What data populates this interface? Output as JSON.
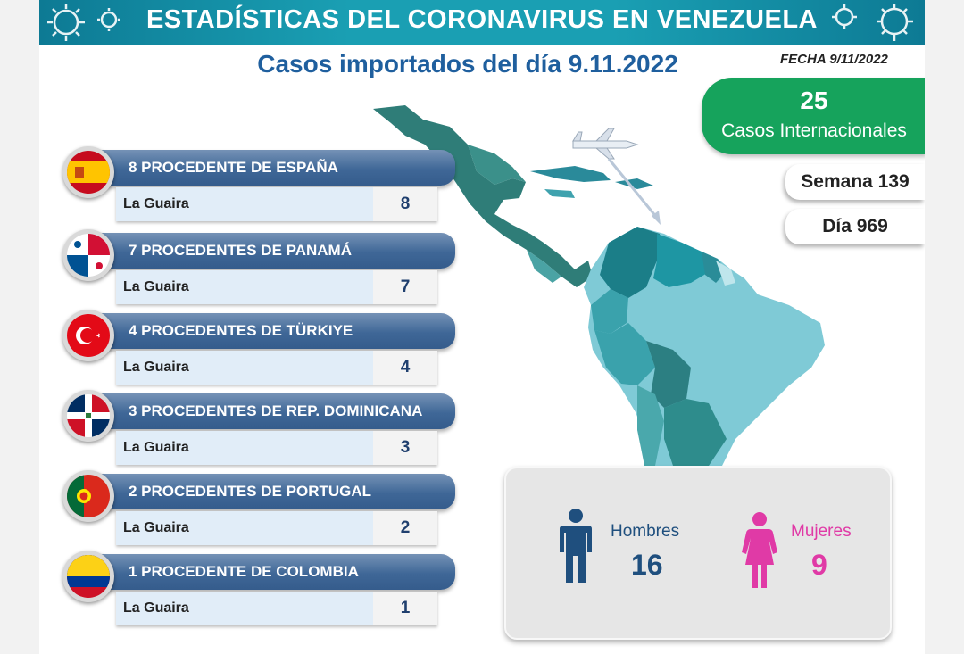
{
  "header": {
    "title": "ESTADÍSTICAS DEL CORONAVIRUS EN VENEZUELA",
    "subtitle": "Casos importados del día 9.11.2022",
    "fecha": "FECHA 9/11/2022"
  },
  "summary": {
    "total": "25",
    "total_label": "Casos Internacionales",
    "semana": "Semana 139",
    "dia": "Día 969"
  },
  "origins": [
    {
      "title": "8 PROCEDENTE DE ESPAÑA",
      "state": "La Guaira",
      "value": "8",
      "flag_icon": "spain-flag-icon"
    },
    {
      "title": "7 PROCEDENTES DE PANAMÁ",
      "state": "La Guaira",
      "value": "7",
      "flag_icon": "panama-flag-icon"
    },
    {
      "title": "4 PROCEDENTES DE TÜRKIYE",
      "state": "La Guaira",
      "value": "4",
      "flag_icon": "turkey-flag-icon"
    },
    {
      "title": "3 PROCEDENTES DE REP. DOMINICANA",
      "state": "La Guaira",
      "value": "3",
      "flag_icon": "dominican-republic-flag-icon"
    },
    {
      "title": "2 PROCEDENTES DE PORTUGAL",
      "state": "La Guaira",
      "value": "2",
      "flag_icon": "portugal-flag-icon"
    },
    {
      "title": "1 PROCEDENTE DE COLOMBIA",
      "state": "La Guaira",
      "value": "1",
      "flag_icon": "colombia-flag-icon"
    }
  ],
  "gender": {
    "men_label": "Hombres",
    "men_value": "16",
    "women_label": "Mujeres",
    "women_value": "9"
  },
  "colors": {
    "banner": "#1a9fb3",
    "subtitle": "#1f5f9e",
    "total_box": "#16a35c",
    "row_header": "#3f6797",
    "men": "#1f4f7e",
    "women": "#e03aa6"
  }
}
